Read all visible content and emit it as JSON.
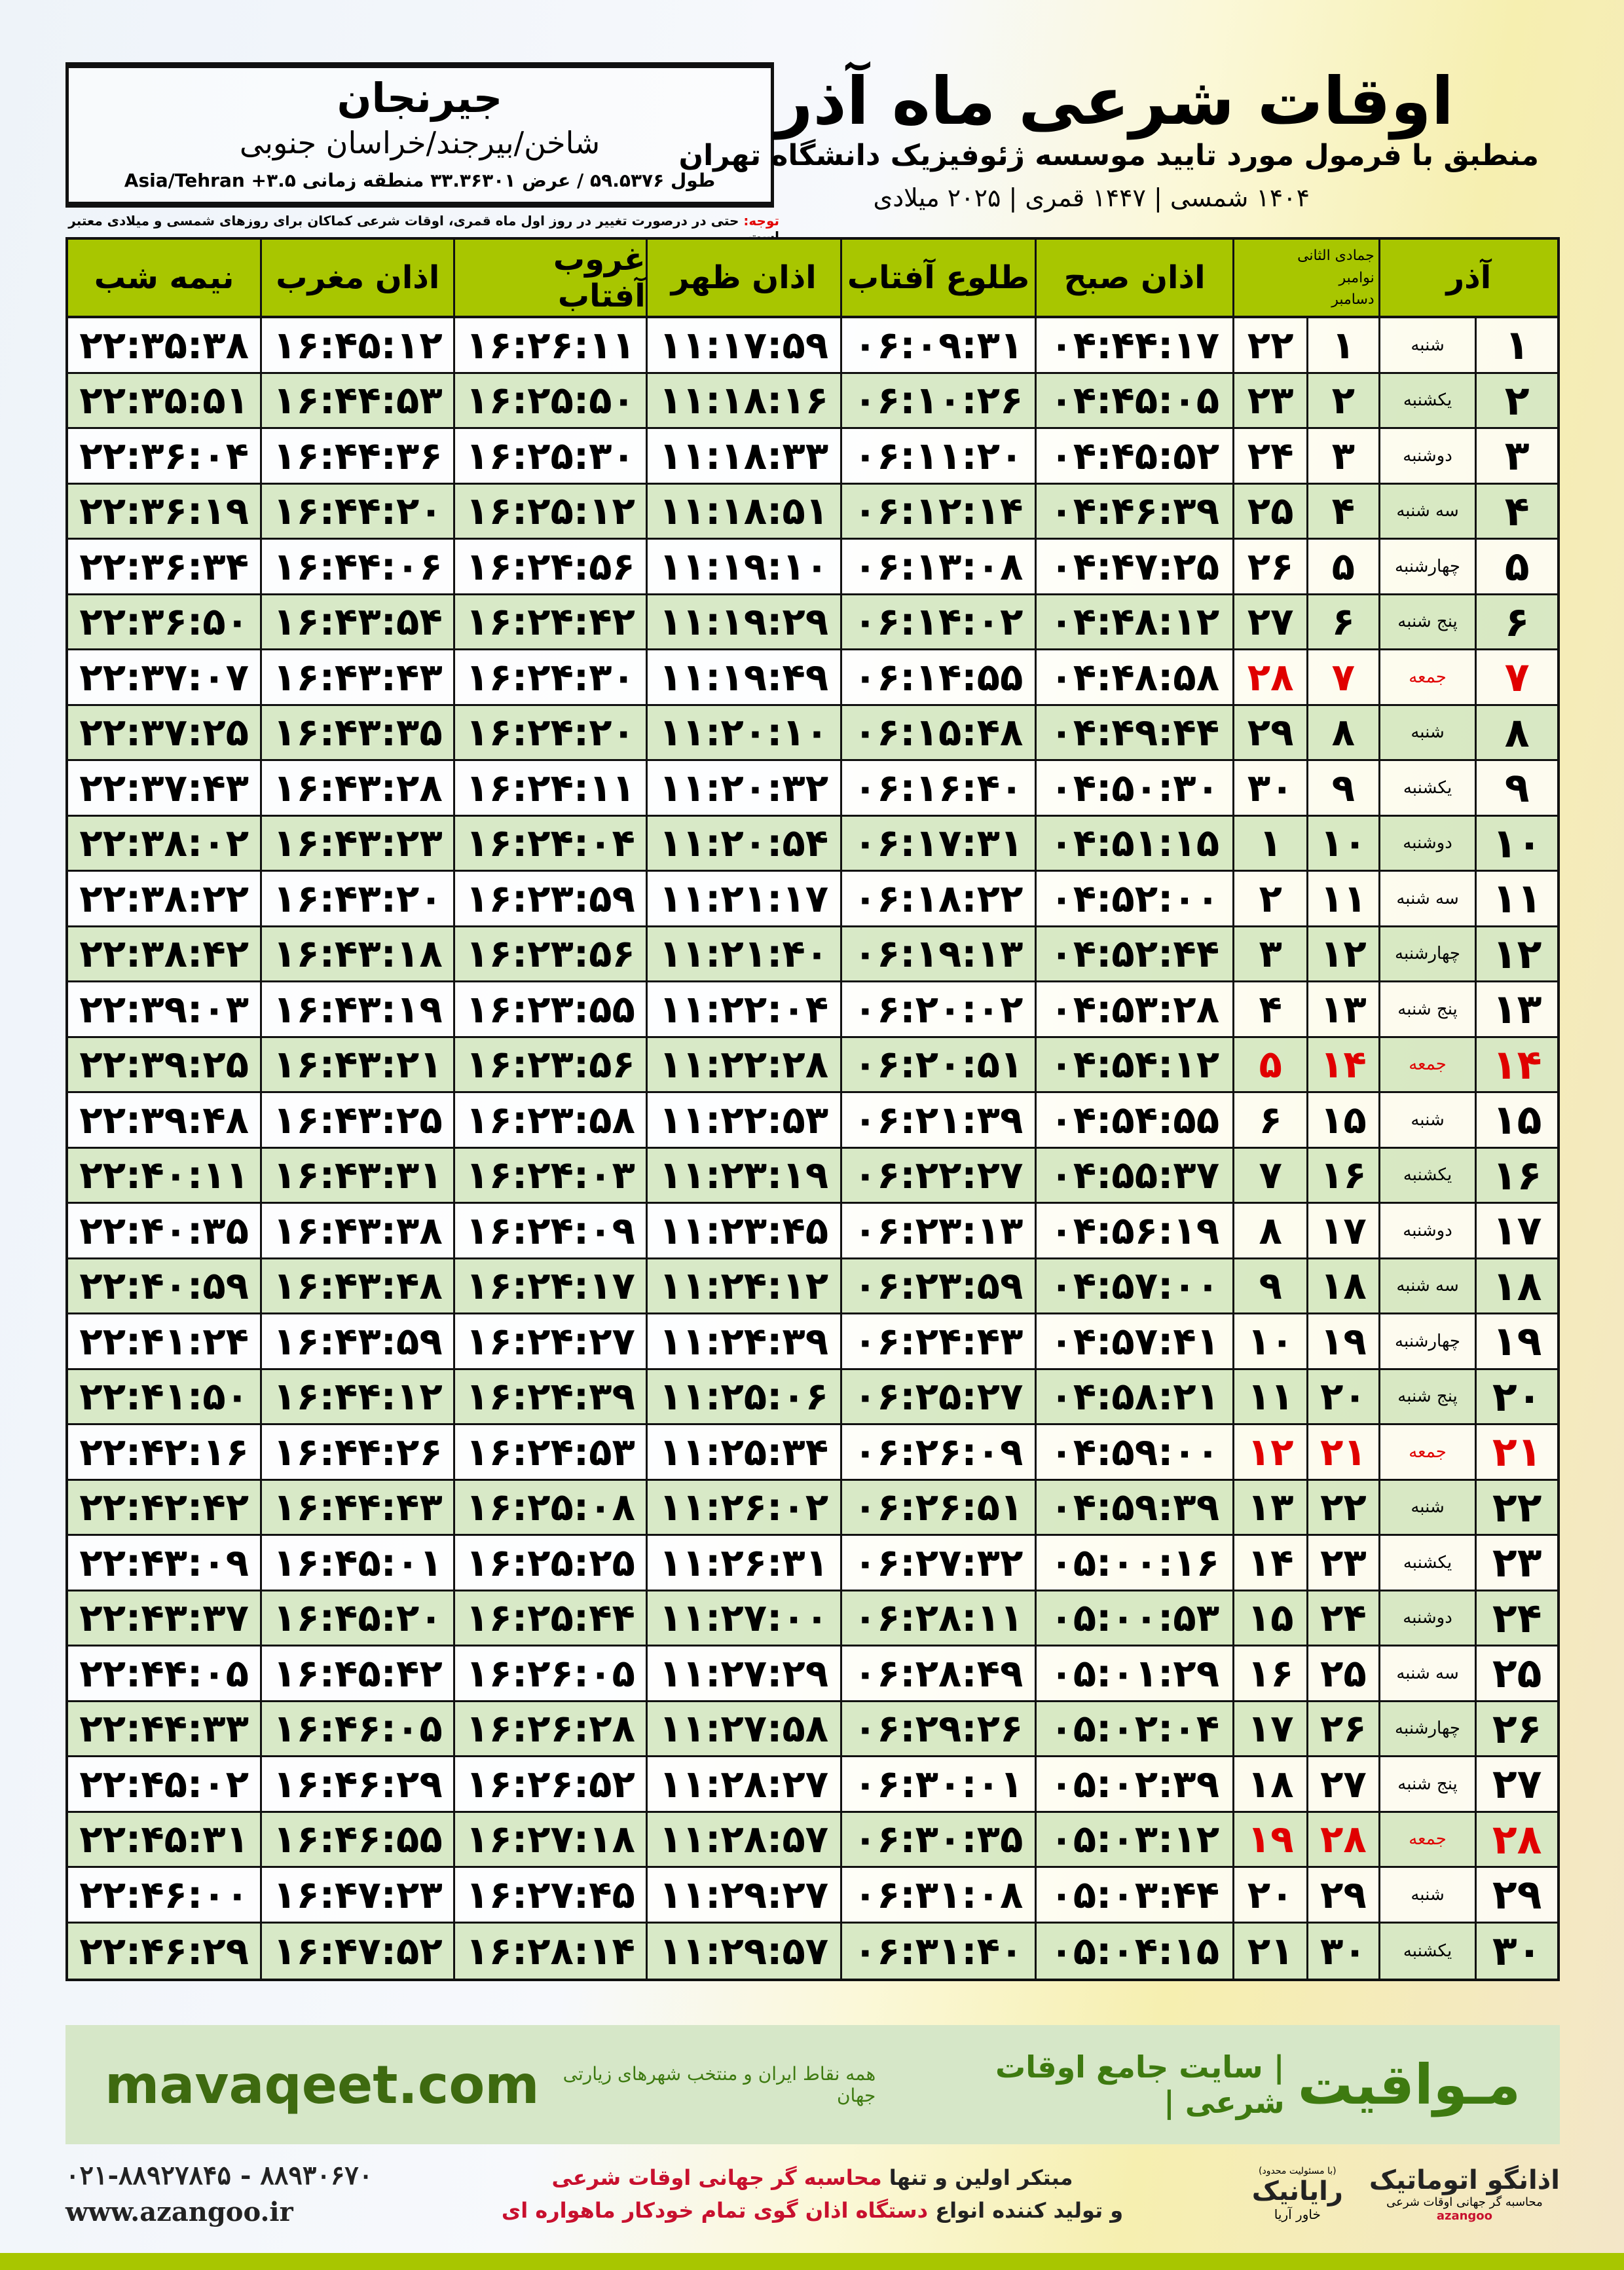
{
  "location": {
    "city": "جیرنجان",
    "region": "شاخن/بیرجند/خراسان جنوبی",
    "coords": "طول ۵۹.۵۳۷۶ / عرض ۳۳.۳۶۳۰۱ منطقه زمانی ۳.۵+ Asia/Tehran"
  },
  "header": {
    "title": "اوقات شرعی ماه آذر",
    "subtitle": "منطبق با فرمول مورد تایید موسسه ژئوفیزیک دانشگاه تهران",
    "dates": "۱۴۰۴ شمسی | ۱۴۴۷ قمری | ۲۰۲۵ میلادی"
  },
  "note": {
    "label": "توجه:",
    "text": " حتی در درصورت تغییر در روز اول ماه قمری، اوقات شرعی کماکان برای روزهای شمسی و میلادی معتبر است."
  },
  "table": {
    "columns": {
      "month": "آذر",
      "hijri": "جمادی الثانی",
      "greg1": "نوامبر",
      "greg2": "دسامبر",
      "subh": "اذان صبح",
      "tolu": "طلوع آفتاب",
      "zohr": "اذان ظهر",
      "ghurub": "غروب آفتاب",
      "maghrib": "اذان مغرب",
      "nimeh": "نیمه شب"
    },
    "friday_color": "#e00000",
    "header_color": "#a8c600",
    "rows": [
      [
        "۱",
        "شنبه",
        "۱",
        "۲۲",
        "۰۴:۴۴:۱۷",
        "۰۶:۰۹:۳۱",
        "۱۱:۱۷:۵۹",
        "۱۶:۲۶:۱۱",
        "۱۶:۴۵:۱۲",
        "۲۲:۳۵:۳۸"
      ],
      [
        "۲",
        "یکشنبه",
        "۲",
        "۲۳",
        "۰۴:۴۵:۰۵",
        "۰۶:۱۰:۲۶",
        "۱۱:۱۸:۱۶",
        "۱۶:۲۵:۵۰",
        "۱۶:۴۴:۵۳",
        "۲۲:۳۵:۵۱"
      ],
      [
        "۳",
        "دوشنبه",
        "۳",
        "۲۴",
        "۰۴:۴۵:۵۲",
        "۰۶:۱۱:۲۰",
        "۱۱:۱۸:۳۳",
        "۱۶:۲۵:۳۰",
        "۱۶:۴۴:۳۶",
        "۲۲:۳۶:۰۴"
      ],
      [
        "۴",
        "سه شنبه",
        "۴",
        "۲۵",
        "۰۴:۴۶:۳۹",
        "۰۶:۱۲:۱۴",
        "۱۱:۱۸:۵۱",
        "۱۶:۲۵:۱۲",
        "۱۶:۴۴:۲۰",
        "۲۲:۳۶:۱۹"
      ],
      [
        "۵",
        "چهارشنبه",
        "۵",
        "۲۶",
        "۰۴:۴۷:۲۵",
        "۰۶:۱۳:۰۸",
        "۱۱:۱۹:۱۰",
        "۱۶:۲۴:۵۶",
        "۱۶:۴۴:۰۶",
        "۲۲:۳۶:۳۴"
      ],
      [
        "۶",
        "پنج شنبه",
        "۶",
        "۲۷",
        "۰۴:۴۸:۱۲",
        "۰۶:۱۴:۰۲",
        "۱۱:۱۹:۲۹",
        "۱۶:۲۴:۴۲",
        "۱۶:۴۳:۵۴",
        "۲۲:۳۶:۵۰"
      ],
      [
        "۷",
        "جمعه",
        "۷",
        "۲۸",
        "۰۴:۴۸:۵۸",
        "۰۶:۱۴:۵۵",
        "۱۱:۱۹:۴۹",
        "۱۶:۲۴:۳۰",
        "۱۶:۴۳:۴۳",
        "۲۲:۳۷:۰۷"
      ],
      [
        "۸",
        "شنبه",
        "۸",
        "۲۹",
        "۰۴:۴۹:۴۴",
        "۰۶:۱۵:۴۸",
        "۱۱:۲۰:۱۰",
        "۱۶:۲۴:۲۰",
        "۱۶:۴۳:۳۵",
        "۲۲:۳۷:۲۵"
      ],
      [
        "۹",
        "یکشنبه",
        "۹",
        "۳۰",
        "۰۴:۵۰:۳۰",
        "۰۶:۱۶:۴۰",
        "۱۱:۲۰:۳۲",
        "۱۶:۲۴:۱۱",
        "۱۶:۴۳:۲۸",
        "۲۲:۳۷:۴۳"
      ],
      [
        "۱۰",
        "دوشنبه",
        "۱۰",
        "۱",
        "۰۴:۵۱:۱۵",
        "۰۶:۱۷:۳۱",
        "۱۱:۲۰:۵۴",
        "۱۶:۲۴:۰۴",
        "۱۶:۴۳:۲۳",
        "۲۲:۳۸:۰۲"
      ],
      [
        "۱۱",
        "سه شنبه",
        "۱۱",
        "۲",
        "۰۴:۵۲:۰۰",
        "۰۶:۱۸:۲۲",
        "۱۱:۲۱:۱۷",
        "۱۶:۲۳:۵۹",
        "۱۶:۴۳:۲۰",
        "۲۲:۳۸:۲۲"
      ],
      [
        "۱۲",
        "چهارشنبه",
        "۱۲",
        "۳",
        "۰۴:۵۲:۴۴",
        "۰۶:۱۹:۱۳",
        "۱۱:۲۱:۴۰",
        "۱۶:۲۳:۵۶",
        "۱۶:۴۳:۱۸",
        "۲۲:۳۸:۴۲"
      ],
      [
        "۱۳",
        "پنج شنبه",
        "۱۳",
        "۴",
        "۰۴:۵۳:۲۸",
        "۰۶:۲۰:۰۲",
        "۱۱:۲۲:۰۴",
        "۱۶:۲۳:۵۵",
        "۱۶:۴۳:۱۹",
        "۲۲:۳۹:۰۳"
      ],
      [
        "۱۴",
        "جمعه",
        "۱۴",
        "۵",
        "۰۴:۵۴:۱۲",
        "۰۶:۲۰:۵۱",
        "۱۱:۲۲:۲۸",
        "۱۶:۲۳:۵۶",
        "۱۶:۴۳:۲۱",
        "۲۲:۳۹:۲۵"
      ],
      [
        "۱۵",
        "شنبه",
        "۱۵",
        "۶",
        "۰۴:۵۴:۵۵",
        "۰۶:۲۱:۳۹",
        "۱۱:۲۲:۵۳",
        "۱۶:۲۳:۵۸",
        "۱۶:۴۳:۲۵",
        "۲۲:۳۹:۴۸"
      ],
      [
        "۱۶",
        "یکشنبه",
        "۱۶",
        "۷",
        "۰۴:۵۵:۳۷",
        "۰۶:۲۲:۲۷",
        "۱۱:۲۳:۱۹",
        "۱۶:۲۴:۰۳",
        "۱۶:۴۳:۳۱",
        "۲۲:۴۰:۱۱"
      ],
      [
        "۱۷",
        "دوشنبه",
        "۱۷",
        "۸",
        "۰۴:۵۶:۱۹",
        "۰۶:۲۳:۱۳",
        "۱۱:۲۳:۴۵",
        "۱۶:۲۴:۰۹",
        "۱۶:۴۳:۳۸",
        "۲۲:۴۰:۳۵"
      ],
      [
        "۱۸",
        "سه شنبه",
        "۱۸",
        "۹",
        "۰۴:۵۷:۰۰",
        "۰۶:۲۳:۵۹",
        "۱۱:۲۴:۱۲",
        "۱۶:۲۴:۱۷",
        "۱۶:۴۳:۴۸",
        "۲۲:۴۰:۵۹"
      ],
      [
        "۱۹",
        "چهارشنبه",
        "۱۹",
        "۱۰",
        "۰۴:۵۷:۴۱",
        "۰۶:۲۴:۴۳",
        "۱۱:۲۴:۳۹",
        "۱۶:۲۴:۲۷",
        "۱۶:۴۳:۵۹",
        "۲۲:۴۱:۲۴"
      ],
      [
        "۲۰",
        "پنج شنبه",
        "۲۰",
        "۱۱",
        "۰۴:۵۸:۲۱",
        "۰۶:۲۵:۲۷",
        "۱۱:۲۵:۰۶",
        "۱۶:۲۴:۳۹",
        "۱۶:۴۴:۱۲",
        "۲۲:۴۱:۵۰"
      ],
      [
        "۲۱",
        "جمعه",
        "۲۱",
        "۱۲",
        "۰۴:۵۹:۰۰",
        "۰۶:۲۶:۰۹",
        "۱۱:۲۵:۳۴",
        "۱۶:۲۴:۵۳",
        "۱۶:۴۴:۲۶",
        "۲۲:۴۲:۱۶"
      ],
      [
        "۲۲",
        "شنبه",
        "۲۲",
        "۱۳",
        "۰۴:۵۹:۳۹",
        "۰۶:۲۶:۵۱",
        "۱۱:۲۶:۰۲",
        "۱۶:۲۵:۰۸",
        "۱۶:۴۴:۴۳",
        "۲۲:۴۲:۴۲"
      ],
      [
        "۲۳",
        "یکشنبه",
        "۲۳",
        "۱۴",
        "۰۵:۰۰:۱۶",
        "۰۶:۲۷:۳۲",
        "۱۱:۲۶:۳۱",
        "۱۶:۲۵:۲۵",
        "۱۶:۴۵:۰۱",
        "۲۲:۴۳:۰۹"
      ],
      [
        "۲۴",
        "دوشنبه",
        "۲۴",
        "۱۵",
        "۰۵:۰۰:۵۳",
        "۰۶:۲۸:۱۱",
        "۱۱:۲۷:۰۰",
        "۱۶:۲۵:۴۴",
        "۱۶:۴۵:۲۰",
        "۲۲:۴۳:۳۷"
      ],
      [
        "۲۵",
        "سه شنبه",
        "۲۵",
        "۱۶",
        "۰۵:۰۱:۲۹",
        "۰۶:۲۸:۴۹",
        "۱۱:۲۷:۲۹",
        "۱۶:۲۶:۰۵",
        "۱۶:۴۵:۴۲",
        "۲۲:۴۴:۰۵"
      ],
      [
        "۲۶",
        "چهارشنبه",
        "۲۶",
        "۱۷",
        "۰۵:۰۲:۰۴",
        "۰۶:۲۹:۲۶",
        "۱۱:۲۷:۵۸",
        "۱۶:۲۶:۲۸",
        "۱۶:۴۶:۰۵",
        "۲۲:۴۴:۳۳"
      ],
      [
        "۲۷",
        "پنج شنبه",
        "۲۷",
        "۱۸",
        "۰۵:۰۲:۳۹",
        "۰۶:۳۰:۰۱",
        "۱۱:۲۸:۲۷",
        "۱۶:۲۶:۵۲",
        "۱۶:۴۶:۲۹",
        "۲۲:۴۵:۰۲"
      ],
      [
        "۲۸",
        "جمعه",
        "۲۸",
        "۱۹",
        "۰۵:۰۳:۱۲",
        "۰۶:۳۰:۳۵",
        "۱۱:۲۸:۵۷",
        "۱۶:۲۷:۱۸",
        "۱۶:۴۶:۵۵",
        "۲۲:۴۵:۳۱"
      ],
      [
        "۲۹",
        "شنبه",
        "۲۹",
        "۲۰",
        "۰۵:۰۳:۴۴",
        "۰۶:۳۱:۰۸",
        "۱۱:۲۹:۲۷",
        "۱۶:۲۷:۴۵",
        "۱۶:۴۷:۲۳",
        "۲۲:۴۶:۰۰"
      ],
      [
        "۳۰",
        "یکشنبه",
        "۳۰",
        "۲۱",
        "۰۵:۰۴:۱۵",
        "۰۶:۳۱:۴۰",
        "۱۱:۲۹:۵۷",
        "۱۶:۲۸:۱۴",
        "۱۶:۴۷:۵۲",
        "۲۲:۴۶:۲۹"
      ]
    ]
  },
  "footer": {
    "brand": "مـواقیت",
    "tagline": "| سایت جامع اوقات شرعی |",
    "tagline2": "همه نقاط ایران و منتخب شهرهای زیارتی جهان",
    "site": "mavaqeet.com",
    "brand_color": "#3e7a10"
  },
  "bottom": {
    "logo1": "اذانگو اتوماتیک",
    "logo1_sub": "محاسبه گر جهانی اوقات شرعی",
    "logo1_en": "azangoo",
    "logo2": "رایانیک",
    "logo2_sub": "خاور آریا",
    "logo2_tag": "(با مسئولیت محدود)",
    "promo_line1_a": "مبتکر اولین و تنها ",
    "promo_line1_b": "محاسبه گر جهانی اوقات شرعی",
    "promo_line2_a": "و تولید کننده انواع ",
    "promo_line2_b": "دستگاه اذان گوی تمام خودکار ماهواره ای",
    "phone": "۰۲۱-۸۸۹۲۷۸۴۵ - ۸۸۹۳۰۶۷۰",
    "web": "www.azangoo.ir"
  }
}
